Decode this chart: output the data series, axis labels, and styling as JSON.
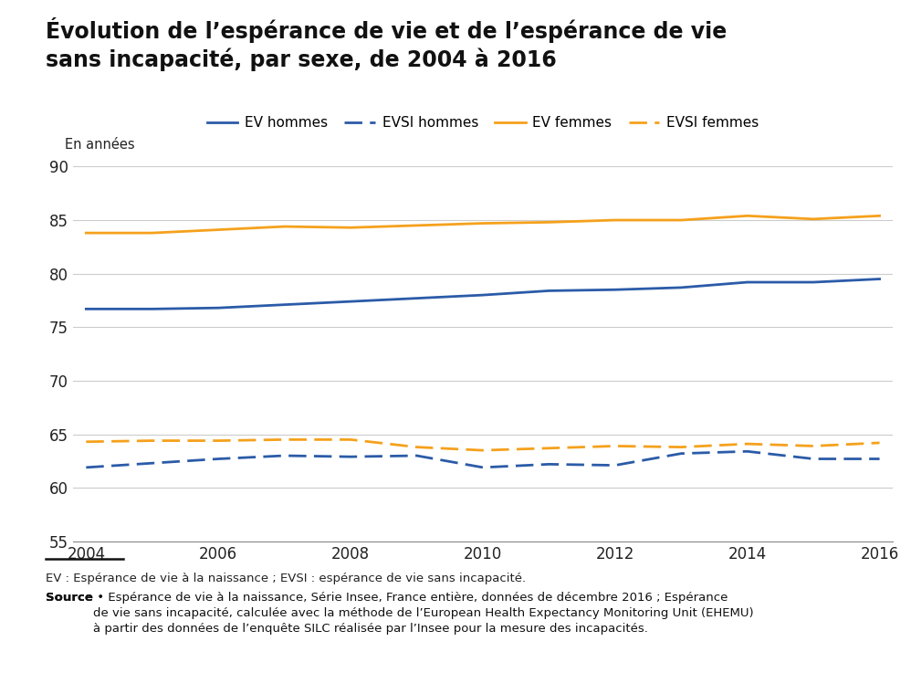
{
  "title": "Évolution de l’espérance de vie et de l’espérance de vie\nsans incapacité, par sexe, de 2004 à 2016",
  "ylabel": "En années",
  "xlim": [
    2004,
    2016
  ],
  "ylim": [
    55,
    90
  ],
  "yticks": [
    55,
    60,
    65,
    70,
    75,
    80,
    85,
    90
  ],
  "xticks": [
    2004,
    2006,
    2008,
    2010,
    2012,
    2014,
    2016
  ],
  "years": [
    2004,
    2005,
    2006,
    2007,
    2008,
    2009,
    2010,
    2011,
    2012,
    2013,
    2014,
    2015,
    2016
  ],
  "ev_hommes": [
    76.7,
    76.7,
    76.8,
    77.1,
    77.4,
    77.7,
    78.0,
    78.4,
    78.5,
    78.7,
    79.2,
    79.2,
    79.5
  ],
  "evsi_hommes": [
    61.9,
    62.3,
    62.7,
    63.0,
    62.9,
    63.0,
    61.9,
    62.2,
    62.1,
    63.2,
    63.4,
    62.7,
    62.7
  ],
  "ev_femmes": [
    83.8,
    83.8,
    84.1,
    84.4,
    84.3,
    84.5,
    84.7,
    84.8,
    85.0,
    85.0,
    85.4,
    85.1,
    85.4
  ],
  "evsi_femmes": [
    64.3,
    64.4,
    64.4,
    64.5,
    64.5,
    63.8,
    63.5,
    63.7,
    63.9,
    63.8,
    64.1,
    63.9,
    64.2
  ],
  "color_blue": "#2B5BA8",
  "color_orange": "#F5A11C",
  "legend_labels": [
    "EV hommes",
    "EVSI hommes",
    "EV femmes",
    "EVSI femmes"
  ],
  "footnote1": "EV : Espérance de vie à la naissance ; EVSI : espérance de vie sans incapacité.",
  "footnote2_bold": "Source",
  "footnote2_rest": " • Espérance de vie à la naissance, Série Insee, France entière, données de décembre 2016 ; Espérance\nde vie sans incapacité, calculée avec la méthode de l’European Health Expectancy Monitoring Unit (EHEMU)\nà partir des données de l’enquête SILC réalisée par l’Insee pour la mesure des incapacités.",
  "background_color": "#FFFFFF",
  "grid_color": "#CCCCCC",
  "title_fontsize": 17,
  "legend_fontsize": 11,
  "tick_fontsize": 12,
  "footnote_fontsize": 9.5
}
